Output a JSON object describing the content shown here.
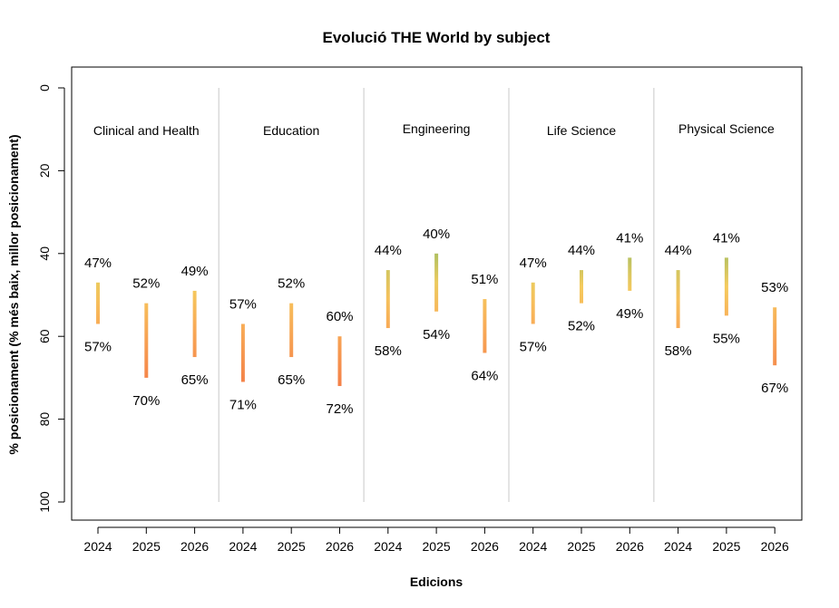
{
  "chart_data": {
    "type": "range-bar",
    "title": "Evolució THE World by subject",
    "xlabel": "Edicions",
    "ylabel": "% posicionament (% més baix, millor posicionament)",
    "ylim": [
      0,
      100
    ],
    "y_reversed": true,
    "y_ticks": [
      "0",
      "20",
      "40",
      "60",
      "80",
      "100"
    ],
    "grid": false,
    "value_suffix": "%",
    "color_scale": {
      "low_value": "#b0c060",
      "mid_value": "#f5cb5e",
      "high_value": "#f48048"
    },
    "separator_color": "#c8c8c8",
    "groups": [
      {
        "label": "Clinical and Health",
        "bars": [
          {
            "edition": "2024",
            "top": 47,
            "bottom": 57
          },
          {
            "edition": "2025",
            "top": 52,
            "bottom": 70
          },
          {
            "edition": "2026",
            "top": 49,
            "bottom": 65
          }
        ]
      },
      {
        "label": "Education",
        "bars": [
          {
            "edition": "2024",
            "top": 57,
            "bottom": 71
          },
          {
            "edition": "2025",
            "top": 52,
            "bottom": 65
          },
          {
            "edition": "2026",
            "top": 60,
            "bottom": 72
          }
        ]
      },
      {
        "label": "Engineering",
        "bars": [
          {
            "edition": "2024",
            "top": 44,
            "bottom": 58
          },
          {
            "edition": "2025",
            "top": 40,
            "bottom": 54
          },
          {
            "edition": "2026",
            "top": 51,
            "bottom": 64
          }
        ]
      },
      {
        "label": "Life Science",
        "bars": [
          {
            "edition": "2024",
            "top": 47,
            "bottom": 57
          },
          {
            "edition": "2025",
            "top": 44,
            "bottom": 52
          },
          {
            "edition": "2026",
            "top": 41,
            "bottom": 49
          }
        ]
      },
      {
        "label": "Physical Science",
        "bars": [
          {
            "edition": "2024",
            "top": 44,
            "bottom": 58
          },
          {
            "edition": "2025",
            "top": 41,
            "bottom": 55
          },
          {
            "edition": "2026",
            "top": 53,
            "bottom": 67
          }
        ]
      }
    ]
  }
}
